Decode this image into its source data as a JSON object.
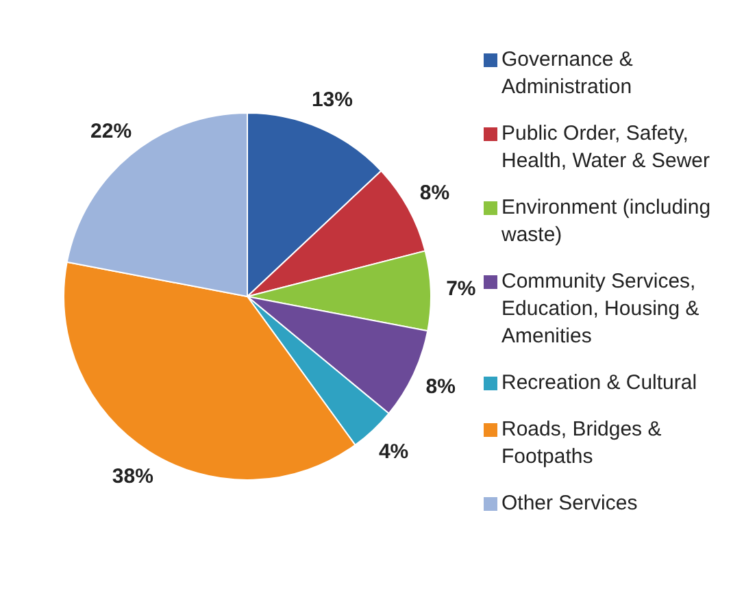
{
  "chart_data": {
    "type": "pie",
    "categories": [
      "Governance & Administration",
      "Public Order, Safety, Health, Water & Sewer",
      "Environment (including waste)",
      "Community Services, Education, Housing & Amenities",
      "Recreation & Cultural",
      "Roads, Bridges & Footpaths",
      "Other Services"
    ],
    "values": [
      13,
      8,
      7,
      8,
      4,
      38,
      22
    ],
    "value_labels": [
      "13%",
      "8%",
      "7%",
      "8%",
      "4%",
      "38%",
      "22%"
    ],
    "colors": [
      "#2f5fa6",
      "#c2343c",
      "#8cc43e",
      "#6b4a98",
      "#2fa2c2",
      "#f28c1e",
      "#9db4dc"
    ],
    "legend": "right"
  }
}
